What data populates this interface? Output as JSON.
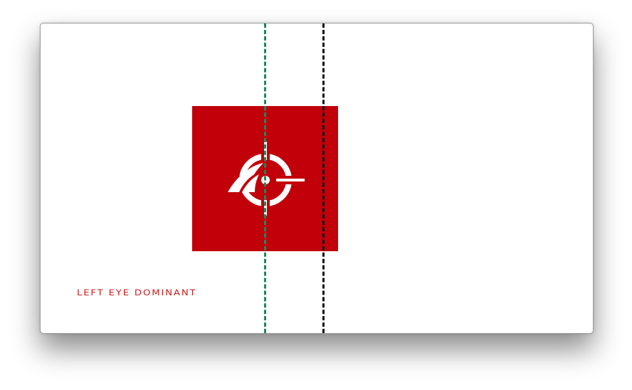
{
  "result": {
    "label": "LEFT EYE DOMINANT"
  },
  "colors": {
    "target_red": "#c1000a",
    "label_red": "#cc2020",
    "dominant_eye_line": "#1a8a5a",
    "other_eye_line": "#111111",
    "background": "#ffffff"
  },
  "icons": {
    "target_logo": "eye-crosshair-icon"
  }
}
